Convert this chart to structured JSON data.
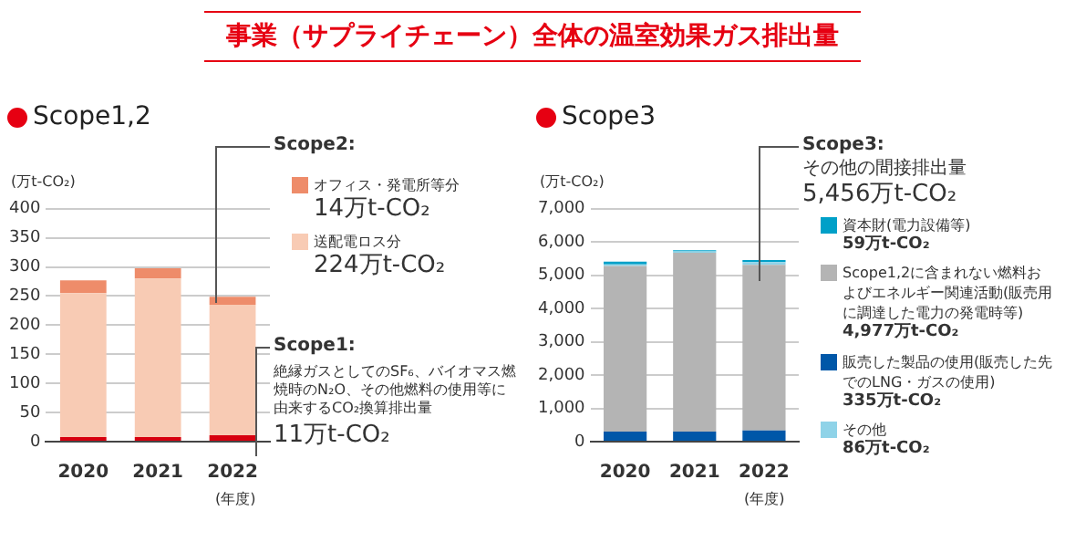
{
  "chart_data": [
    {
      "type": "bar",
      "title": "事業（サプライチェーン）全体の温室効果ガス排出量",
      "subtitle": "Scope1,2",
      "ylabel": "(万t-CO₂)",
      "xlabel": "(年度)",
      "categories": [
        "2020",
        "2021",
        "2022"
      ],
      "stacked": true,
      "grid": "y",
      "legend": "right",
      "ylim": [
        0,
        400
      ],
      "yticks": [
        0,
        50,
        100,
        150,
        200,
        250,
        300,
        350,
        400
      ],
      "series": [
        {
          "color": "#d7000f",
          "values": [
            8,
            8,
            11
          ]
        },
        {
          "name": "送配電ロス分",
          "color": "#f8cbb4",
          "values": [
            247,
            272,
            224
          ]
        },
        {
          "name": "オフィス・発電所等分",
          "color": "#ee8c6a",
          "values": [
            22,
            18,
            14
          ]
        }
      ],
      "annotations": [
        "Scope2:",
        "14万t-CO₂",
        "224万t-CO₂",
        "Scope1:",
        "絶縁ガスとしてのSF₆、バイオマス燃焼時のN₂O、その他燃料の使用等に由来するCO₂換算排出量",
        "11万t-CO₂"
      ]
    },
    {
      "type": "bar",
      "subtitle": "Scope3",
      "ylabel": "(万t-CO₂)",
      "xlabel": "(年度)",
      "categories": [
        "2020",
        "2021",
        "2022"
      ],
      "stacked": true,
      "grid": "y",
      "legend": "right",
      "ylim": [
        0,
        7000
      ],
      "yticks": [
        0,
        {
          "value": 1000,
          "label": "1,000"
        },
        {
          "value": 2000,
          "label": "2,000"
        },
        {
          "value": 3000,
          "label": "3,000"
        },
        {
          "value": 4000,
          "label": "4,000"
        },
        {
          "value": 5000,
          "label": "5,000"
        },
        {
          "value": 6000,
          "label": "6,000"
        },
        {
          "value": 7000,
          "label": "7,000"
        }
      ],
      "series": [
        {
          "name": "販売した製品の使用(販売した先でのLNG・ガスの使用)",
          "color": "#0057a8",
          "values": [
            300,
            300,
            335
          ]
        },
        {
          "name": "Scope1,2に含まれない燃料およびエネルギー関連活動(販売用に調達した電力の発電時等)",
          "color": "#b4b4b4",
          "values": [
            4980,
            5380,
            4977
          ]
        },
        {
          "name": "その他",
          "color": "#8fd3e8",
          "values": [
            50,
            40,
            86
          ]
        },
        {
          "name": "資本財(電力設備等)",
          "color": "#00a0c8",
          "values": [
            80,
            30,
            59
          ]
        }
      ],
      "annotations": [
        "Scope3:",
        "その他の間接排出量",
        "5,456万t-CO₂",
        "59万t-CO₂",
        "4,977万t-CO₂",
        "335万t-CO₂",
        "86万t-CO₂"
      ]
    }
  ]
}
